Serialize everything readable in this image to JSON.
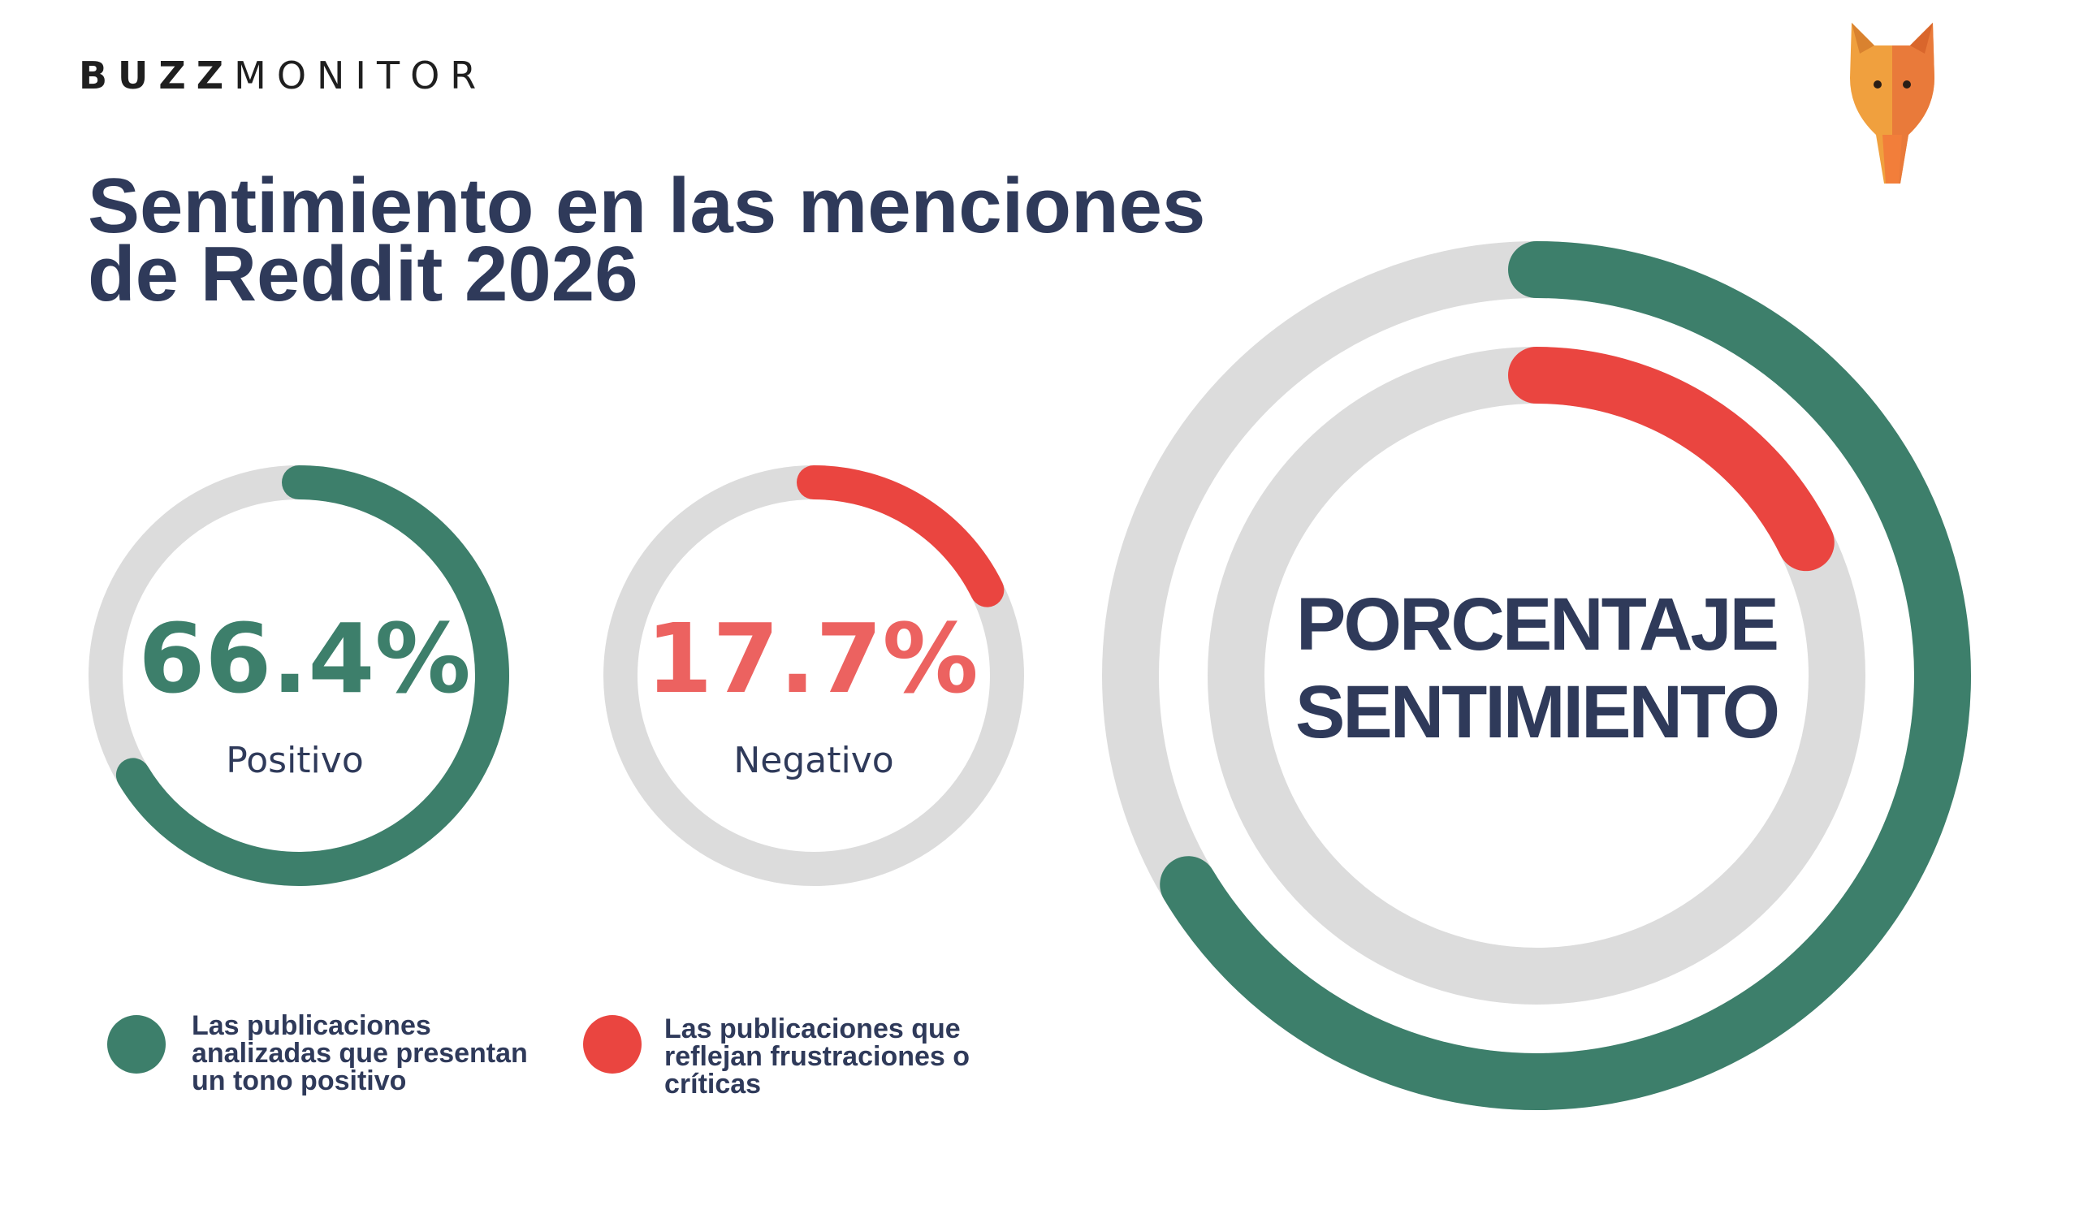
{
  "brand": {
    "logo_bold": "BUZZ",
    "logo_light": "MONITOR",
    "mascot": "fox-mascot-icon"
  },
  "title_line1": "Sentimiento en las menciones",
  "title_line2": "de Reddit 2026",
  "colors": {
    "positive": "#3d7f6b",
    "negative": "#ea4540",
    "negative_text": "#ec6260",
    "track": "#dcdcdc",
    "text": "#2f3a5a"
  },
  "chart_data": [
    {
      "type": "pie",
      "subtype": "donut",
      "series": [
        {
          "name": "Positivo",
          "value": 66.4,
          "label": "66.4%"
        }
      ]
    },
    {
      "type": "pie",
      "subtype": "donut",
      "series": [
        {
          "name": "Negativo",
          "value": 17.7,
          "label": "17.7%"
        }
      ]
    },
    {
      "type": "pie",
      "subtype": "concentric-donut",
      "center_label_line1": "PORCENTAJE",
      "center_label_line2": "SENTIMIENTO",
      "series": [
        {
          "ring": "outer",
          "value": 66.4
        },
        {
          "ring": "inner",
          "value": 17.7
        }
      ]
    }
  ],
  "legend": [
    {
      "lines": [
        "Las publicaciones",
        "analizadas que presentan",
        "un tono positivo"
      ]
    },
    {
      "lines": [
        "Las publicaciones que",
        "reflejan frustraciones o",
        "críticas"
      ]
    }
  ]
}
